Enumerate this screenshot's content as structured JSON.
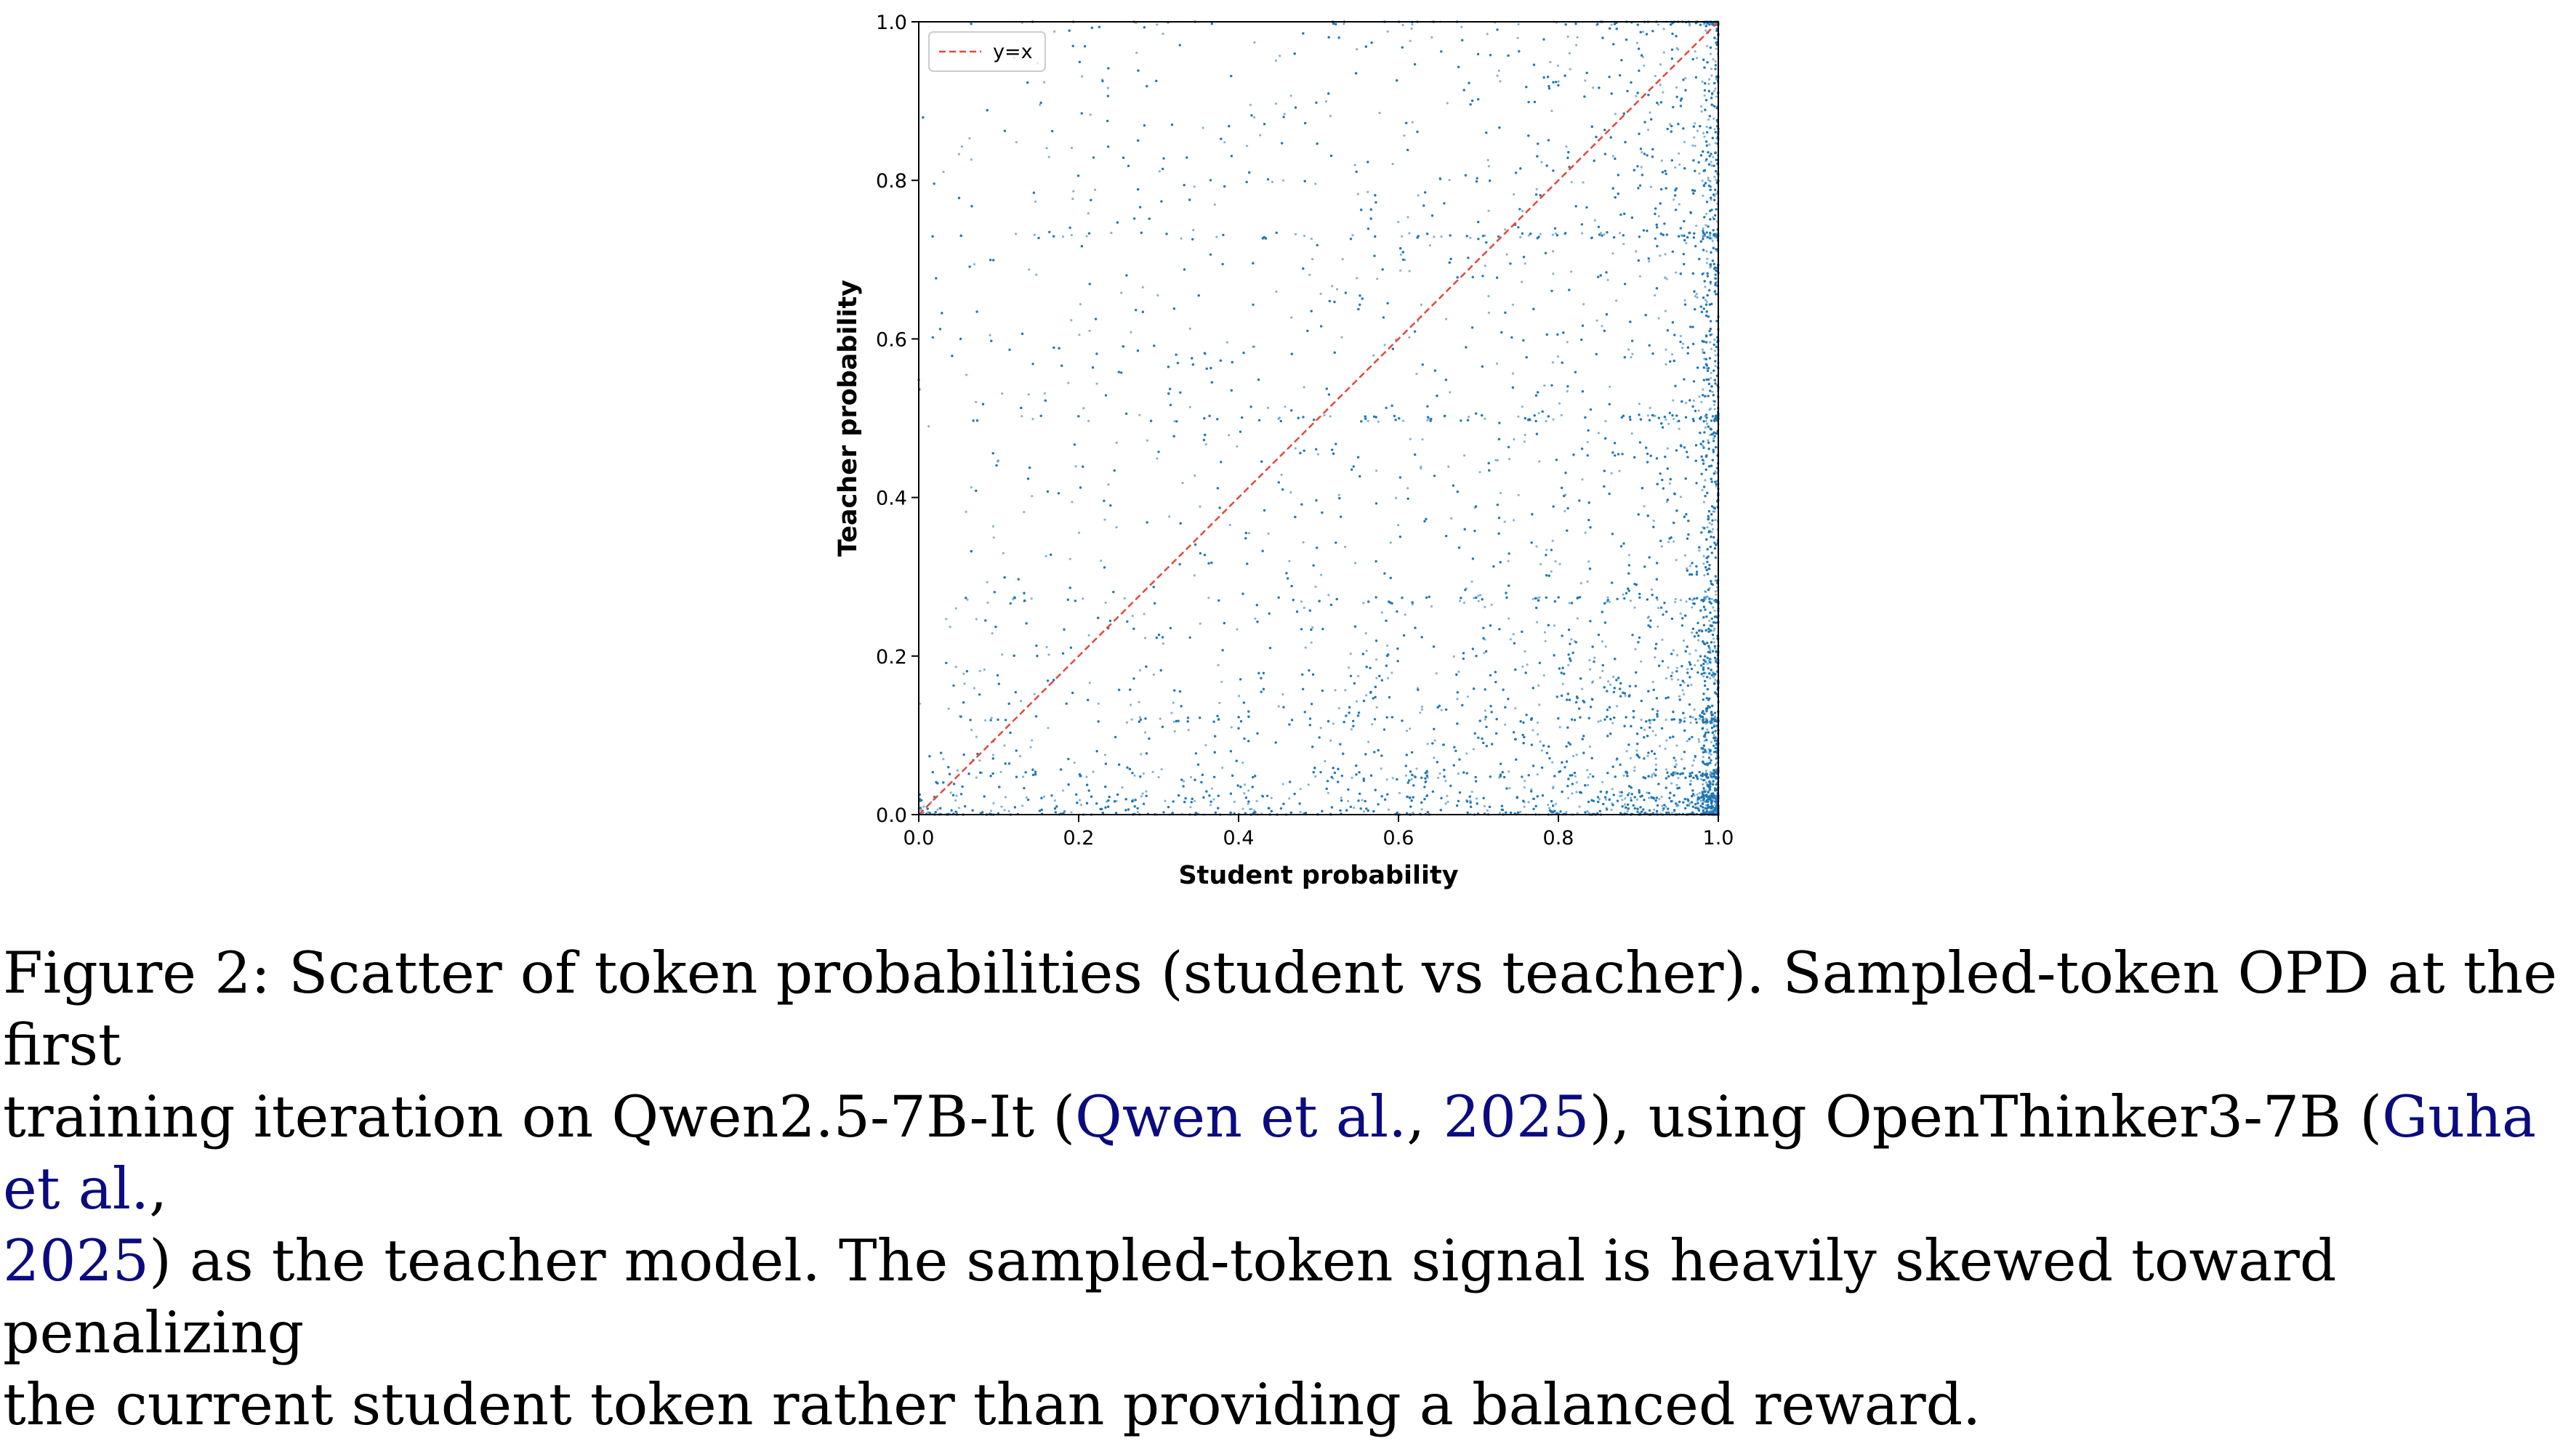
{
  "chart_data": {
    "type": "scatter",
    "title": "",
    "xlabel": "Student probability",
    "ylabel": "Teacher probability",
    "xlim": [
      0.0,
      1.0
    ],
    "ylim": [
      0.0,
      1.0
    ],
    "xticks": [
      "0.0",
      "0.2",
      "0.4",
      "0.6",
      "0.8",
      "1.0"
    ],
    "yticks": [
      "0.0",
      "0.2",
      "0.4",
      "0.6",
      "0.8",
      "1.0"
    ],
    "grid": false,
    "legend": {
      "position": "top-left",
      "entries": [
        "y=x"
      ]
    },
    "series": [
      {
        "name": "y=x",
        "kind": "line",
        "style": "dashed",
        "color": "#e8463b",
        "points": [
          [
            0.0,
            0.0
          ],
          [
            1.0,
            1.0
          ]
        ]
      },
      {
        "kind": "scatter",
        "color": "#1f77b4",
        "note_density": "points concentrate near student probability 1.0 and teacher probability 0.0; horizontal bands of points at teacher ≈ 0.02, 0.05, 0.12, 0.27, 0.50, 0.73 and 1.0",
        "bands_y": [
          0.02,
          0.05,
          0.12,
          0.27,
          0.5,
          0.73,
          1.0
        ],
        "point_count": 14000
      }
    ]
  },
  "caption": {
    "line1": "Figure 2: Scatter of token probabilities (student vs teacher). Sampled-token OPD at the first",
    "line2_pre": "training iteration on Qwen2.5-7B-It (",
    "line2_cite1_author": "Qwen et al.",
    "line2_sep1": ", ",
    "line2_cite1_year": "2025",
    "line2_mid": "), using OpenThinker3-7B (",
    "line2_cite2_author": "Guha et al.",
    "line2_end": ",",
    "line3_cite2_year": "2025",
    "line3_rest": ") as the teacher model. The sampled-token signal is heavily skewed toward penalizing",
    "line4": "the current student token rather than providing a balanced reward."
  }
}
